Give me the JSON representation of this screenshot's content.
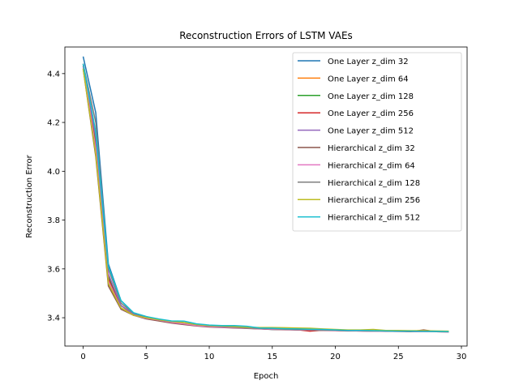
{
  "chart_data": {
    "type": "line",
    "title": "Reconstruction Errors of LSTM VAEs",
    "xlabel": "Epoch",
    "ylabel": "Reconstruction Error",
    "xlim": [
      -1.45,
      30.45
    ],
    "ylim": [
      3.284,
      4.509
    ],
    "xticks": [
      0,
      5,
      10,
      15,
      20,
      25,
      30
    ],
    "yticks": [
      3.4,
      3.6,
      3.8,
      4.0,
      4.2,
      4.4
    ],
    "ytick_labels": [
      "3.4",
      "3.6",
      "3.8",
      "4.0",
      "4.2",
      "4.4"
    ],
    "grid": false,
    "legend_position": "top-right",
    "x": [
      0,
      1,
      2,
      3,
      4,
      5,
      6,
      7,
      8,
      9,
      10,
      11,
      12,
      13,
      14,
      15,
      16,
      17,
      18,
      19,
      20,
      21,
      22,
      23,
      24,
      25,
      26,
      27,
      28,
      29
    ],
    "series": [
      {
        "name": "One Layer z_dim 32",
        "color": "#1f77b4",
        "values": [
          4.47,
          4.24,
          3.62,
          3.47,
          3.42,
          3.405,
          3.39,
          3.38,
          3.375,
          3.37,
          3.365,
          3.363,
          3.362,
          3.36,
          3.355,
          3.352,
          3.352,
          3.35,
          3.35,
          3.348,
          3.348,
          3.347,
          3.347,
          3.346,
          3.345,
          3.345,
          3.345,
          3.344,
          3.344,
          3.343
        ]
      },
      {
        "name": "One Layer z_dim 64",
        "color": "#ff7f0e",
        "values": [
          4.43,
          4.08,
          3.55,
          3.45,
          3.41,
          3.4,
          3.39,
          3.38,
          3.375,
          3.37,
          3.365,
          3.362,
          3.36,
          3.358,
          3.356,
          3.355,
          3.354,
          3.353,
          3.352,
          3.35,
          3.349,
          3.348,
          3.347,
          3.346,
          3.346,
          3.345,
          3.344,
          3.344,
          3.343,
          3.343
        ]
      },
      {
        "name": "One Layer z_dim 128",
        "color": "#2ca02c",
        "values": [
          4.44,
          4.12,
          3.57,
          3.45,
          3.415,
          3.4,
          3.39,
          3.382,
          3.377,
          3.37,
          3.366,
          3.363,
          3.36,
          3.358,
          3.356,
          3.354,
          3.353,
          3.352,
          3.351,
          3.35,
          3.349,
          3.348,
          3.347,
          3.346,
          3.345,
          3.345,
          3.344,
          3.344,
          3.343,
          3.343
        ]
      },
      {
        "name": "One Layer z_dim 256",
        "color": "#d62728",
        "values": [
          4.43,
          4.1,
          3.56,
          3.44,
          3.41,
          3.4,
          3.39,
          3.38,
          3.375,
          3.368,
          3.365,
          3.362,
          3.36,
          3.357,
          3.355,
          3.353,
          3.352,
          3.351,
          3.345,
          3.349,
          3.348,
          3.347,
          3.346,
          3.345,
          3.345,
          3.344,
          3.344,
          3.343,
          3.343,
          3.342
        ]
      },
      {
        "name": "One Layer z_dim 512",
        "color": "#9467bd",
        "values": [
          4.44,
          4.14,
          3.58,
          3.45,
          3.415,
          3.4,
          3.39,
          3.383,
          3.378,
          3.371,
          3.366,
          3.363,
          3.361,
          3.358,
          3.356,
          3.354,
          3.353,
          3.352,
          3.351,
          3.35,
          3.349,
          3.348,
          3.347,
          3.346,
          3.346,
          3.345,
          3.344,
          3.344,
          3.343,
          3.343
        ]
      },
      {
        "name": "Hierarchical z_dim 32",
        "color": "#8c564b",
        "values": [
          4.42,
          4.06,
          3.53,
          3.435,
          3.41,
          3.395,
          3.387,
          3.378,
          3.372,
          3.366,
          3.362,
          3.36,
          3.358,
          3.356,
          3.354,
          3.352,
          3.351,
          3.35,
          3.349,
          3.348,
          3.347,
          3.346,
          3.346,
          3.345,
          3.344,
          3.344,
          3.343,
          3.35,
          3.343,
          3.342
        ]
      },
      {
        "name": "Hierarchical z_dim 64",
        "color": "#e377c2",
        "values": [
          4.43,
          4.09,
          3.55,
          3.44,
          3.41,
          3.398,
          3.39,
          3.381,
          3.375,
          3.368,
          3.364,
          3.361,
          3.359,
          3.357,
          3.355,
          3.353,
          3.352,
          3.351,
          3.35,
          3.349,
          3.348,
          3.347,
          3.346,
          3.345,
          3.345,
          3.344,
          3.344,
          3.343,
          3.343,
          3.342
        ]
      },
      {
        "name": "Hierarchical z_dim 128",
        "color": "#7f7f7f",
        "values": [
          4.44,
          4.2,
          3.6,
          3.46,
          3.418,
          3.403,
          3.392,
          3.385,
          3.38,
          3.372,
          3.367,
          3.364,
          3.361,
          3.358,
          3.356,
          3.355,
          3.353,
          3.352,
          3.351,
          3.35,
          3.349,
          3.348,
          3.347,
          3.346,
          3.346,
          3.345,
          3.344,
          3.344,
          3.343,
          3.343
        ]
      },
      {
        "name": "Hierarchical z_dim 256",
        "color": "#bcbd22",
        "values": [
          4.42,
          4.07,
          3.54,
          3.44,
          3.41,
          3.4,
          3.392,
          3.385,
          3.38,
          3.372,
          3.368,
          3.366,
          3.364,
          3.361,
          3.36,
          3.36,
          3.359,
          3.358,
          3.357,
          3.354,
          3.352,
          3.35,
          3.35,
          3.352,
          3.348,
          3.348,
          3.347,
          3.347,
          3.346,
          3.345
        ]
      },
      {
        "name": "Hierarchical z_dim 512",
        "color": "#17becf",
        "values": [
          4.44,
          4.16,
          3.61,
          3.47,
          3.42,
          3.405,
          3.395,
          3.387,
          3.386,
          3.375,
          3.37,
          3.368,
          3.368,
          3.365,
          3.358,
          3.357,
          3.355,
          3.354,
          3.353,
          3.352,
          3.35,
          3.348,
          3.348,
          3.347,
          3.346,
          3.345,
          3.345,
          3.344,
          3.344,
          3.343
        ]
      }
    ]
  }
}
